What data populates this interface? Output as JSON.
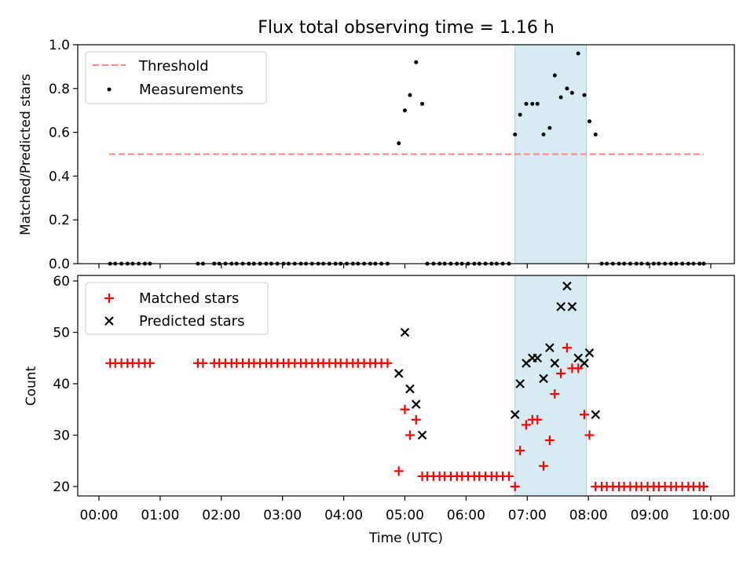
{
  "chart_data": [
    {
      "type": "scatter",
      "title": "Flux total observing time = 1.16 h",
      "xlabel": "",
      "ylabel": "Matched/Predicted stars",
      "xlim": [
        "00:00",
        "10:00"
      ],
      "ylim": [
        0,
        1.0
      ],
      "yticks": [
        "0.0",
        "0.2",
        "0.4",
        "0.6",
        "0.8",
        "1.0"
      ],
      "shaded_interval": [
        "06:48",
        "07:58"
      ],
      "shade_color": "#add8e6",
      "legend_position": "upper left",
      "threshold": {
        "name": "Threshold",
        "value": 0.5,
        "x_range": [
          "00:10",
          "09:53"
        ],
        "color": "#ff8080",
        "style": "dashed"
      },
      "series": [
        {
          "name": "Measurements",
          "color": "#000000",
          "marker": "dot",
          "points": [
            [
              "00:11",
              0
            ],
            [
              "00:16",
              0
            ],
            [
              "00:22",
              0
            ],
            [
              "00:28",
              0
            ],
            [
              "00:33",
              0
            ],
            [
              "00:39",
              0
            ],
            [
              "00:45",
              0
            ],
            [
              "00:50",
              0
            ],
            [
              "01:37",
              0
            ],
            [
              "01:42",
              0
            ],
            [
              "01:53",
              0
            ],
            [
              "01:58",
              0
            ],
            [
              "02:04",
              0
            ],
            [
              "02:10",
              0
            ],
            [
              "02:15",
              0
            ],
            [
              "02:21",
              0
            ],
            [
              "02:27",
              0
            ],
            [
              "02:32",
              0
            ],
            [
              "02:38",
              0
            ],
            [
              "02:44",
              0
            ],
            [
              "02:49",
              0
            ],
            [
              "02:55",
              0
            ],
            [
              "03:01",
              0
            ],
            [
              "03:06",
              0
            ],
            [
              "03:12",
              0
            ],
            [
              "03:18",
              0
            ],
            [
              "03:23",
              0
            ],
            [
              "03:29",
              0
            ],
            [
              "03:35",
              0
            ],
            [
              "03:40",
              0
            ],
            [
              "03:46",
              0
            ],
            [
              "03:52",
              0
            ],
            [
              "03:57",
              0
            ],
            [
              "04:03",
              0
            ],
            [
              "04:09",
              0
            ],
            [
              "04:14",
              0
            ],
            [
              "04:20",
              0
            ],
            [
              "04:26",
              0
            ],
            [
              "04:31",
              0
            ],
            [
              "04:37",
              0
            ],
            [
              "04:43",
              0
            ],
            [
              "04:54",
              0.55
            ],
            [
              "05:00",
              0.7
            ],
            [
              "05:05",
              0.77
            ],
            [
              "05:11",
              0.92
            ],
            [
              "05:17",
              0.73
            ],
            [
              "05:22",
              0
            ],
            [
              "05:28",
              0
            ],
            [
              "05:34",
              0
            ],
            [
              "05:39",
              0
            ],
            [
              "05:45",
              0
            ],
            [
              "05:51",
              0
            ],
            [
              "05:56",
              0
            ],
            [
              "06:02",
              0
            ],
            [
              "06:08",
              0
            ],
            [
              "06:13",
              0
            ],
            [
              "06:19",
              0
            ],
            [
              "06:25",
              0
            ],
            [
              "06:30",
              0
            ],
            [
              "06:36",
              0
            ],
            [
              "06:42",
              0
            ],
            [
              "06:48",
              0.59
            ],
            [
              "06:53",
              0.68
            ],
            [
              "06:59",
              0.73
            ],
            [
              "07:05",
              0.73
            ],
            [
              "07:10",
              0.73
            ],
            [
              "07:16",
              0.59
            ],
            [
              "07:22",
              0.62
            ],
            [
              "07:27",
              0.86
            ],
            [
              "07:33",
              0.76
            ],
            [
              "07:39",
              0.8
            ],
            [
              "07:44",
              0.78
            ],
            [
              "07:50",
              0.96
            ],
            [
              "07:56",
              0.77
            ],
            [
              "08:01",
              0.65
            ],
            [
              "08:07",
              0.59
            ],
            [
              "08:13",
              0
            ],
            [
              "08:18",
              0
            ],
            [
              "08:24",
              0
            ],
            [
              "08:30",
              0
            ],
            [
              "08:35",
              0
            ],
            [
              "08:41",
              0
            ],
            [
              "08:47",
              0
            ],
            [
              "08:52",
              0
            ],
            [
              "08:58",
              0
            ],
            [
              "09:04",
              0
            ],
            [
              "09:09",
              0
            ],
            [
              "09:15",
              0
            ],
            [
              "09:21",
              0
            ],
            [
              "09:26",
              0
            ],
            [
              "09:32",
              0
            ],
            [
              "09:38",
              0
            ],
            [
              "09:43",
              0
            ],
            [
              "09:49",
              0
            ],
            [
              "09:53",
              0
            ]
          ]
        }
      ]
    },
    {
      "type": "scatter",
      "xlabel": "Time (UTC)",
      "ylabel": "Count",
      "xlim": [
        "00:00",
        "10:00"
      ],
      "xticks": [
        "00:00",
        "01:00",
        "02:00",
        "03:00",
        "04:00",
        "05:00",
        "06:00",
        "07:00",
        "08:00",
        "09:00",
        "10:00"
      ],
      "ylim": [
        18,
        61
      ],
      "yticks": [
        "20",
        "30",
        "40",
        "50",
        "60"
      ],
      "shaded_interval": [
        "06:48",
        "07:58"
      ],
      "shade_color": "#add8e6",
      "legend_position": "upper left",
      "series": [
        {
          "name": "Matched stars",
          "color": "#ff0000",
          "marker": "plus",
          "points": [
            [
              "00:11",
              44
            ],
            [
              "00:16",
              44
            ],
            [
              "00:22",
              44
            ],
            [
              "00:28",
              44
            ],
            [
              "00:33",
              44
            ],
            [
              "00:39",
              44
            ],
            [
              "00:45",
              44
            ],
            [
              "00:50",
              44
            ],
            [
              "01:37",
              44
            ],
            [
              "01:42",
              44
            ],
            [
              "01:53",
              44
            ],
            [
              "01:58",
              44
            ],
            [
              "02:04",
              44
            ],
            [
              "02:10",
              44
            ],
            [
              "02:15",
              44
            ],
            [
              "02:21",
              44
            ],
            [
              "02:27",
              44
            ],
            [
              "02:32",
              44
            ],
            [
              "02:38",
              44
            ],
            [
              "02:44",
              44
            ],
            [
              "02:49",
              44
            ],
            [
              "02:55",
              44
            ],
            [
              "03:01",
              44
            ],
            [
              "03:06",
              44
            ],
            [
              "03:12",
              44
            ],
            [
              "03:18",
              44
            ],
            [
              "03:23",
              44
            ],
            [
              "03:29",
              44
            ],
            [
              "03:35",
              44
            ],
            [
              "03:40",
              44
            ],
            [
              "03:46",
              44
            ],
            [
              "03:52",
              44
            ],
            [
              "03:57",
              44
            ],
            [
              "04:03",
              44
            ],
            [
              "04:09",
              44
            ],
            [
              "04:14",
              44
            ],
            [
              "04:20",
              44
            ],
            [
              "04:26",
              44
            ],
            [
              "04:31",
              44
            ],
            [
              "04:37",
              44
            ],
            [
              "04:43",
              44
            ],
            [
              "04:54",
              23
            ],
            [
              "05:00",
              35
            ],
            [
              "05:05",
              30
            ],
            [
              "05:11",
              33
            ],
            [
              "05:17",
              22
            ],
            [
              "05:22",
              22
            ],
            [
              "05:28",
              22
            ],
            [
              "05:34",
              22
            ],
            [
              "05:39",
              22
            ],
            [
              "05:45",
              22
            ],
            [
              "05:51",
              22
            ],
            [
              "05:56",
              22
            ],
            [
              "06:02",
              22
            ],
            [
              "06:08",
              22
            ],
            [
              "06:13",
              22
            ],
            [
              "06:19",
              22
            ],
            [
              "06:25",
              22
            ],
            [
              "06:30",
              22
            ],
            [
              "06:36",
              22
            ],
            [
              "06:42",
              22
            ],
            [
              "06:48",
              20
            ],
            [
              "06:53",
              27
            ],
            [
              "06:59",
              32
            ],
            [
              "07:05",
              33
            ],
            [
              "07:10",
              33
            ],
            [
              "07:16",
              24
            ],
            [
              "07:22",
              29
            ],
            [
              "07:27",
              38
            ],
            [
              "07:33",
              42
            ],
            [
              "07:39",
              47
            ],
            [
              "07:44",
              43
            ],
            [
              "07:50",
              43
            ],
            [
              "07:56",
              34
            ],
            [
              "08:01",
              30
            ],
            [
              "08:07",
              20
            ],
            [
              "08:13",
              20
            ],
            [
              "08:18",
              20
            ],
            [
              "08:24",
              20
            ],
            [
              "08:30",
              20
            ],
            [
              "08:35",
              20
            ],
            [
              "08:41",
              20
            ],
            [
              "08:47",
              20
            ],
            [
              "08:52",
              20
            ],
            [
              "08:58",
              20
            ],
            [
              "09:04",
              20
            ],
            [
              "09:09",
              20
            ],
            [
              "09:15",
              20
            ],
            [
              "09:21",
              20
            ],
            [
              "09:26",
              20
            ],
            [
              "09:32",
              20
            ],
            [
              "09:38",
              20
            ],
            [
              "09:43",
              20
            ],
            [
              "09:49",
              20
            ],
            [
              "09:53",
              20
            ]
          ]
        },
        {
          "name": "Predicted stars",
          "color": "#000000",
          "marker": "x",
          "points": [
            [
              "04:54",
              42
            ],
            [
              "05:00",
              50
            ],
            [
              "05:05",
              39
            ],
            [
              "05:11",
              36
            ],
            [
              "05:17",
              30
            ],
            [
              "06:48",
              34
            ],
            [
              "06:53",
              40
            ],
            [
              "06:59",
              44
            ],
            [
              "07:05",
              45
            ],
            [
              "07:10",
              45
            ],
            [
              "07:16",
              41
            ],
            [
              "07:22",
              47
            ],
            [
              "07:27",
              44
            ],
            [
              "07:33",
              55
            ],
            [
              "07:39",
              59
            ],
            [
              "07:44",
              55
            ],
            [
              "07:50",
              45
            ],
            [
              "07:56",
              44
            ],
            [
              "08:01",
              46
            ],
            [
              "08:07",
              34
            ]
          ]
        }
      ]
    }
  ]
}
